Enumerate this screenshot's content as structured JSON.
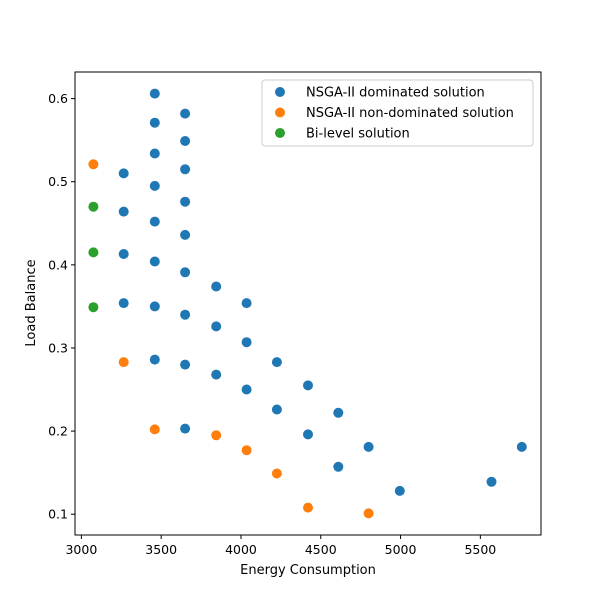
{
  "chart_data": {
    "type": "scatter",
    "xlabel": "Energy Consumption",
    "ylabel": "Load Balance",
    "xlim": [
      2960,
      5880
    ],
    "ylim": [
      0.075,
      0.632
    ],
    "xticks": [
      3000,
      3500,
      4000,
      4500,
      5000,
      5500
    ],
    "yticks": [
      0.1,
      0.2,
      0.3,
      0.4,
      0.5,
      0.6
    ],
    "grid": false,
    "legend_position": "top-right",
    "series": [
      {
        "name": "NSGA-II dominated solution",
        "color": "#1f77b4",
        "points": [
          [
            3460,
            0.606
          ],
          [
            3460,
            0.571
          ],
          [
            3460,
            0.534
          ],
          [
            3460,
            0.495
          ],
          [
            3460,
            0.452
          ],
          [
            3460,
            0.404
          ],
          [
            3460,
            0.35
          ],
          [
            3460,
            0.286
          ],
          [
            3650,
            0.582
          ],
          [
            3650,
            0.549
          ],
          [
            3650,
            0.515
          ],
          [
            3650,
            0.476
          ],
          [
            3650,
            0.436
          ],
          [
            3650,
            0.391
          ],
          [
            3650,
            0.34
          ],
          [
            3650,
            0.28
          ],
          [
            3650,
            0.203
          ],
          [
            3265,
            0.51
          ],
          [
            3265,
            0.464
          ],
          [
            3265,
            0.413
          ],
          [
            3265,
            0.354
          ],
          [
            3845,
            0.374
          ],
          [
            3845,
            0.326
          ],
          [
            3845,
            0.268
          ],
          [
            4035,
            0.354
          ],
          [
            4035,
            0.307
          ],
          [
            4035,
            0.25
          ],
          [
            4225,
            0.283
          ],
          [
            4225,
            0.226
          ],
          [
            4420,
            0.255
          ],
          [
            4420,
            0.196
          ],
          [
            4610,
            0.222
          ],
          [
            4610,
            0.157
          ],
          [
            4800,
            0.181
          ],
          [
            4995,
            0.128
          ],
          [
            5570,
            0.139
          ],
          [
            5760,
            0.181
          ]
        ]
      },
      {
        "name": "NSGA-II non-dominated solution",
        "color": "#ff7f0e",
        "points": [
          [
            3075,
            0.521
          ],
          [
            3265,
            0.283
          ],
          [
            3460,
            0.202
          ],
          [
            3845,
            0.195
          ],
          [
            4035,
            0.177
          ],
          [
            4225,
            0.149
          ],
          [
            4420,
            0.108
          ],
          [
            4800,
            0.101
          ]
        ]
      },
      {
        "name": "Bi-level solution",
        "color": "#2ca02c",
        "points": [
          [
            3075,
            0.47
          ],
          [
            3075,
            0.415
          ],
          [
            3075,
            0.349
          ]
        ]
      }
    ]
  }
}
